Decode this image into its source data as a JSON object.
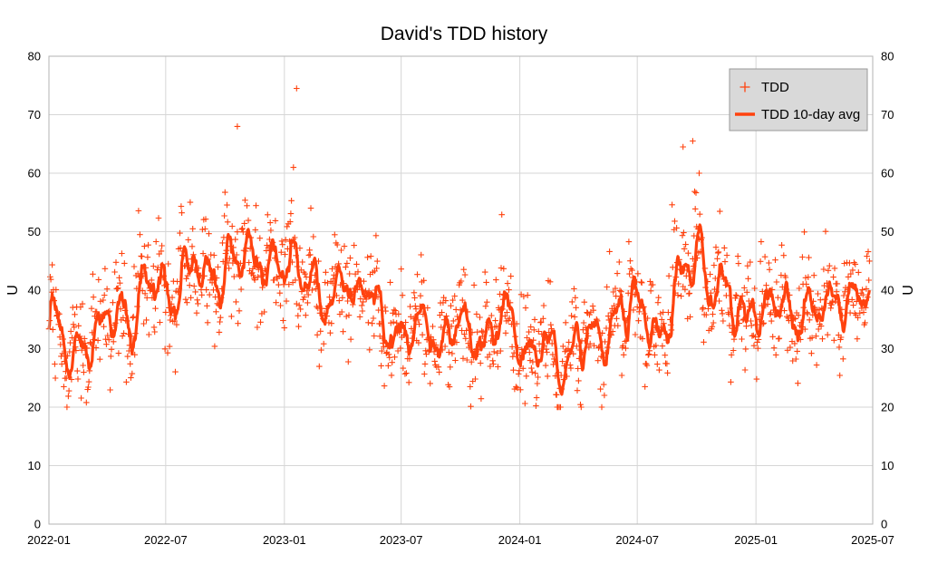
{
  "chart_data": {
    "type": "scatter",
    "title": "David's TDD history",
    "ylabel_left": "U",
    "ylabel_right": "U",
    "xlim": [
      "2022-01",
      "2025-07"
    ],
    "ylim": [
      0,
      80
    ],
    "x_ticks": [
      "2022-01",
      "2022-07",
      "2023-01",
      "2023-07",
      "2024-01",
      "2024-07",
      "2025-01",
      "2025-07"
    ],
    "y_ticks": [
      0,
      10,
      20,
      30,
      40,
      50,
      60,
      70,
      80
    ],
    "grid": true,
    "legend_position": "top-right",
    "colors": {
      "series": "#ff420e",
      "legend_bg": "#d9d9d9"
    },
    "series": [
      {
        "name": "TDD",
        "kind": "scatter",
        "marker": "+"
      },
      {
        "name": "TDD 10-day avg",
        "kind": "line"
      }
    ],
    "avg_keypoints": [
      [
        "2022-01-01",
        35
      ],
      [
        "2022-01-15",
        30
      ],
      [
        "2022-02-01",
        28
      ],
      [
        "2022-02-15",
        30
      ],
      [
        "2022-03-01",
        32
      ],
      [
        "2022-04-01",
        34
      ],
      [
        "2022-05-01",
        37
      ],
      [
        "2022-06-01",
        39
      ],
      [
        "2022-07-01",
        41
      ],
      [
        "2022-08-01",
        42
      ],
      [
        "2022-09-01",
        42
      ],
      [
        "2022-10-01",
        44
      ],
      [
        "2022-11-01",
        46
      ],
      [
        "2022-12-01",
        44
      ],
      [
        "2023-01-01",
        42
      ],
      [
        "2023-01-15",
        45
      ],
      [
        "2023-02-01",
        44
      ],
      [
        "2023-03-01",
        36
      ],
      [
        "2023-04-01",
        42
      ],
      [
        "2023-05-01",
        40
      ],
      [
        "2023-06-01",
        36
      ],
      [
        "2023-07-01",
        32
      ],
      [
        "2023-08-01",
        33
      ],
      [
        "2023-09-01",
        33
      ],
      [
        "2023-10-01",
        32
      ],
      [
        "2023-11-01",
        33
      ],
      [
        "2023-12-01",
        34
      ],
      [
        "2024-01-01",
        31
      ],
      [
        "2024-02-01",
        30
      ],
      [
        "2024-03-01",
        27
      ],
      [
        "2024-04-01",
        32
      ],
      [
        "2024-05-01",
        31
      ],
      [
        "2024-06-01",
        38
      ],
      [
        "2024-07-01",
        36
      ],
      [
        "2024-08-01",
        33
      ],
      [
        "2024-09-01",
        42
      ],
      [
        "2024-10-01",
        46
      ],
      [
        "2024-11-01",
        39
      ],
      [
        "2024-12-01",
        37
      ],
      [
        "2025-01-01",
        36
      ],
      [
        "2025-02-01",
        37
      ],
      [
        "2025-03-01",
        36
      ],
      [
        "2025-04-01",
        36
      ],
      [
        "2025-05-01",
        39
      ],
      [
        "2025-06-01",
        38
      ],
      [
        "2025-06-25",
        39
      ]
    ],
    "annotated_points": [
      [
        "2022-10-20",
        68
      ],
      [
        "2023-01-20",
        74.5
      ],
      [
        "2023-01-15",
        61
      ],
      [
        "2024-09-10",
        64.5
      ],
      [
        "2024-09-25",
        65.5
      ],
      [
        "2024-10-05",
        60
      ]
    ]
  }
}
